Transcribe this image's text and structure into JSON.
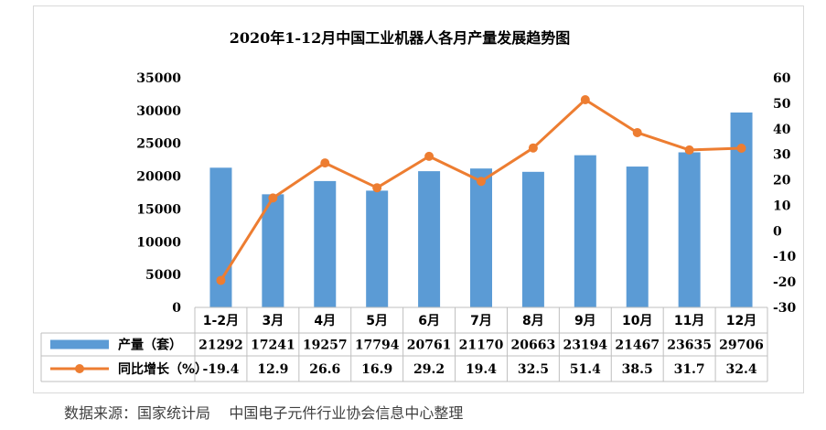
{
  "chart_data": {
    "type": "bar",
    "title": "2020年1-12月中国工业机器人各月产量发展趋势图",
    "categories": [
      "1-2月",
      "3月",
      "4月",
      "5月",
      "6月",
      "7月",
      "8月",
      "9月",
      "10月",
      "11月",
      "12月"
    ],
    "series": [
      {
        "name": "产量（套）",
        "type": "bar",
        "axis": "left",
        "color": "#5b9bd5",
        "values": [
          21292,
          17241,
          19257,
          17794,
          20761,
          21170,
          20663,
          23194,
          21467,
          23635,
          29706
        ]
      },
      {
        "name": "同比增长（%）",
        "type": "line",
        "axis": "right",
        "color": "#ed7d31",
        "values": [
          -19.4,
          12.9,
          26.6,
          16.9,
          29.2,
          19.4,
          32.5,
          51.4,
          38.5,
          31.7,
          32.4
        ]
      }
    ],
    "y_left": {
      "min": 0,
      "max": 35000,
      "step": 5000
    },
    "y_right": {
      "min": -30,
      "max": 60,
      "step": 10
    },
    "data_table": true,
    "grid": false
  },
  "source": "数据来源：国家统计局    中国电子元件行业协会信息中心整理"
}
